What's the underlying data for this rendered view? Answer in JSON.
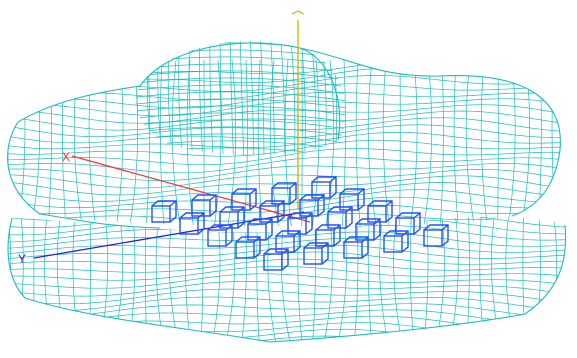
{
  "axes": {
    "x": {
      "label": "X",
      "color": "#ff3333"
    },
    "y": {
      "label": "Y",
      "color": "#2424d6"
    },
    "z": {
      "label": "",
      "color": "#c9b400"
    }
  },
  "colors": {
    "wireframe": "#1fbcbc",
    "array_elements": "#1e50ff",
    "background": "#ffffff"
  },
  "array": {
    "element_shape": "box",
    "element_count": 25
  }
}
